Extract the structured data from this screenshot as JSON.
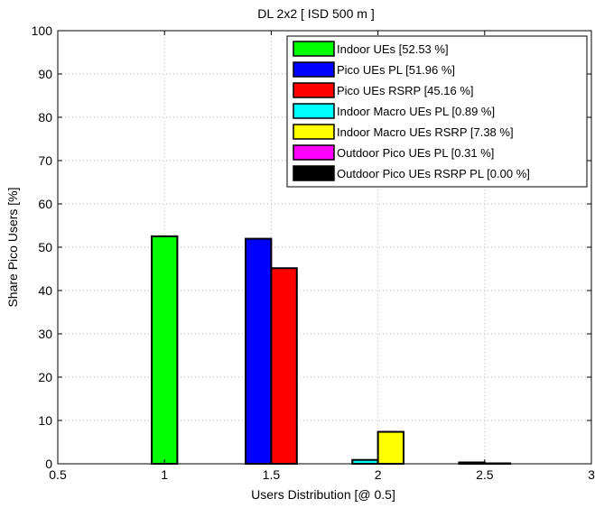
{
  "chart_data": {
    "type": "bar",
    "title": "DL 2x2 [ ISD 500 m ]",
    "xlabel": "Users Distribution [@ 0.5]",
    "ylabel": "Share Pico Users [%]",
    "xlim": [
      0.5,
      3
    ],
    "ylim": [
      0,
      100
    ],
    "xticks": [
      "0.5",
      "1",
      "1.5",
      "2",
      "2.5",
      "3"
    ],
    "yticks": [
      "0",
      "10",
      "20",
      "30",
      "40",
      "50",
      "60",
      "70",
      "80",
      "90",
      "100"
    ],
    "grid": true,
    "legend_position": "top-right",
    "bar_width": 0.12,
    "series": [
      {
        "name": "Indoor UEs [52.53 %]",
        "color": "#00ff00",
        "x": 1.0,
        "value": 52.53
      },
      {
        "name": "Pico UEs PL [51.96 %]",
        "color": "#0000ff",
        "x": 1.44,
        "value": 51.96
      },
      {
        "name": "Pico UEs RSRP [45.16 %]",
        "color": "#ff0000",
        "x": 1.56,
        "value": 45.16
      },
      {
        "name": "Indoor Macro UEs PL [0.89 %]",
        "color": "#00ffff",
        "x": 1.94,
        "value": 0.89
      },
      {
        "name": "Indoor Macro UEs RSRP [7.38 %]",
        "color": "#ffff00",
        "x": 2.06,
        "value": 7.38
      },
      {
        "name": "Outdoor Pico UEs PL [0.31 %]",
        "color": "#ff00ff",
        "x": 2.44,
        "value": 0.31
      },
      {
        "name": "Outdoor Pico UEs RSRP PL [0.00 %]",
        "color": "#000000",
        "x": 2.56,
        "value": 0.0
      }
    ]
  }
}
